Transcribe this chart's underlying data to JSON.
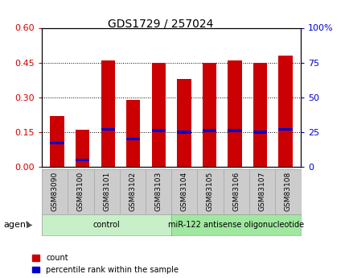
{
  "title": "GDS1729 / 257024",
  "samples": [
    "GSM83090",
    "GSM83100",
    "GSM83101",
    "GSM83102",
    "GSM83103",
    "GSM83104",
    "GSM83105",
    "GSM83106",
    "GSM83107",
    "GSM83108"
  ],
  "count_values": [
    0.22,
    0.16,
    0.46,
    0.29,
    0.45,
    0.38,
    0.45,
    0.46,
    0.45,
    0.48
  ],
  "percentile_values": [
    17,
    5,
    27,
    20,
    26,
    25,
    26,
    26,
    25,
    27
  ],
  "red_color": "#cc0000",
  "blue_color": "#0000cc",
  "ylim_left": [
    0,
    0.6
  ],
  "ylim_right": [
    0,
    100
  ],
  "yticks_left": [
    0,
    0.15,
    0.3,
    0.45,
    0.6
  ],
  "yticks_right": [
    0,
    25,
    50,
    75,
    100
  ],
  "groups": [
    {
      "label": "control",
      "n": 5,
      "color": "#c8f0c8"
    },
    {
      "label": "miR-122 antisense oligonucleotide",
      "n": 5,
      "color": "#a0e8a0"
    }
  ],
  "agent_label": "agent",
  "legend_count": "count",
  "legend_percentile": "percentile rank within the sample",
  "bar_width": 0.55,
  "tick_label_color_left": "#cc0000",
  "tick_label_color_right": "#0000cc",
  "grid_lines": [
    0.15,
    0.3,
    0.45
  ],
  "sample_box_color": "#cccccc",
  "sample_box_edge": "#999999"
}
